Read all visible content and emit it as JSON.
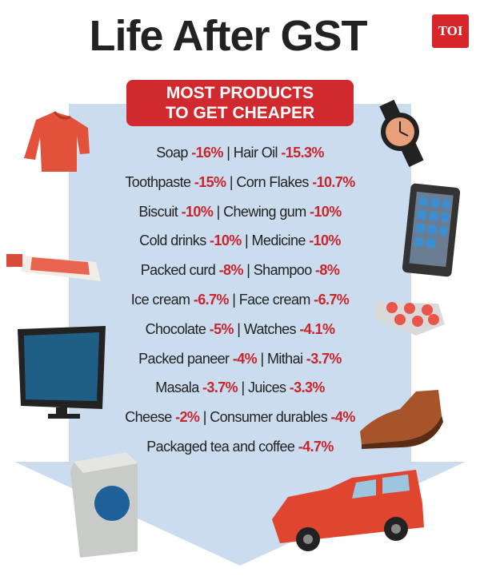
{
  "header": {
    "title": "Life After GST",
    "logo": "TOI"
  },
  "banner": {
    "lines": [
      "MOST PRODUCTS",
      "TO GET CHEAPER"
    ]
  },
  "separator": "|",
  "rows": [
    [
      {
        "name": "Soap",
        "change": "-16%"
      },
      {
        "name": "Hair Oil",
        "change": "-15.3%"
      }
    ],
    [
      {
        "name": "Toothpaste",
        "change": "-15%"
      },
      {
        "name": "Corn Flakes",
        "change": "-10.7%"
      }
    ],
    [
      {
        "name": "Biscuit",
        "change": "-10%"
      },
      {
        "name": "Chewing gum",
        "change": "-10%"
      }
    ],
    [
      {
        "name": "Cold drinks",
        "change": "-10%"
      },
      {
        "name": "Medicine",
        "change": "-10%"
      }
    ],
    [
      {
        "name": "Packed curd",
        "change": "-8%"
      },
      {
        "name": "Shampoo",
        "change": "-8%"
      }
    ],
    [
      {
        "name": "Ice cream",
        "change": "-6.7%"
      },
      {
        "name": "Face cream",
        "change": "-6.7%"
      }
    ],
    [
      {
        "name": "Chocolate",
        "change": "-5%"
      },
      {
        "name": "Watches",
        "change": "-4.1%"
      }
    ],
    [
      {
        "name": "Packed paneer",
        "change": "-4%"
      },
      {
        "name": "Mithai",
        "change": "-3.7%"
      }
    ],
    [
      {
        "name": "Masala",
        "change": "-3.7%"
      },
      {
        "name": "Juices",
        "change": "-3.3%"
      }
    ],
    [
      {
        "name": "Cheese",
        "change": "-2%"
      },
      {
        "name": "Consumer durables",
        "change": "-4%"
      }
    ],
    [
      {
        "name": "Packaged tea and coffee",
        "change": "-4.7%"
      }
    ]
  ]
}
